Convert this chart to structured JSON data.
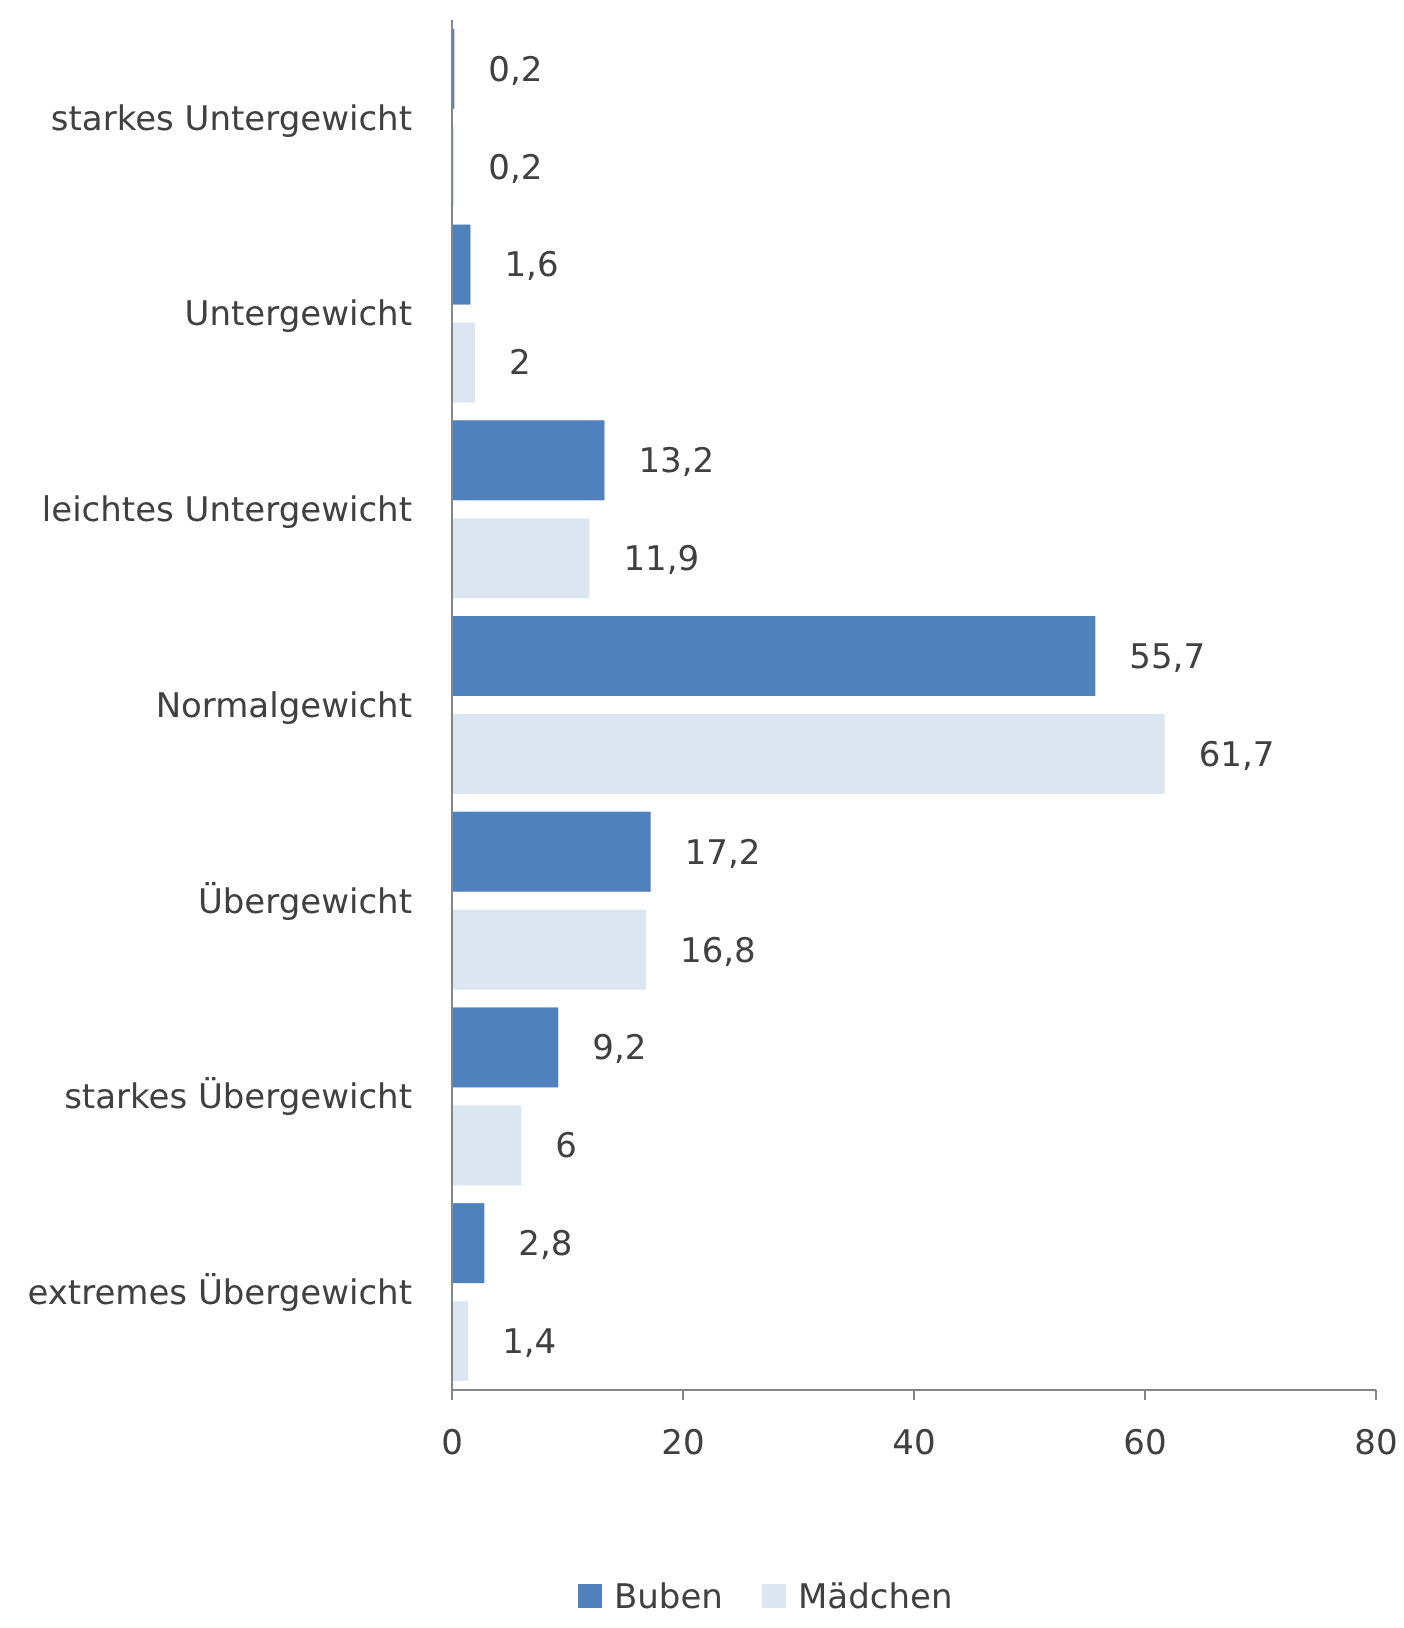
{
  "chart_data": {
    "type": "bar",
    "orientation": "horizontal",
    "categories": [
      "starkes Untergewicht",
      "Untergewicht",
      "leichtes Untergewicht",
      "Normalgewicht",
      "Übergewicht",
      "starkes Übergewicht",
      "extremes Übergewicht"
    ],
    "series": [
      {
        "name": "Buben",
        "color": "#4f81bd",
        "values": [
          0.2,
          1.6,
          13.2,
          55.7,
          17.2,
          9.2,
          2.8
        ],
        "value_labels": [
          "0,2",
          "1,6",
          "13,2",
          "55,7",
          "17,2",
          "9,2",
          "2,8"
        ]
      },
      {
        "name": "Mädchen",
        "color": "#dce6f2",
        "values": [
          0.2,
          2,
          11.9,
          61.7,
          16.8,
          6,
          1.4
        ],
        "value_labels": [
          "0,2",
          "2",
          "11,9",
          "61,7",
          "16,8",
          "6",
          "1,4"
        ]
      }
    ],
    "xlim": [
      0,
      80
    ],
    "xticks": [
      0,
      20,
      40,
      60,
      80
    ],
    "grid": false,
    "legend": "bottom"
  }
}
